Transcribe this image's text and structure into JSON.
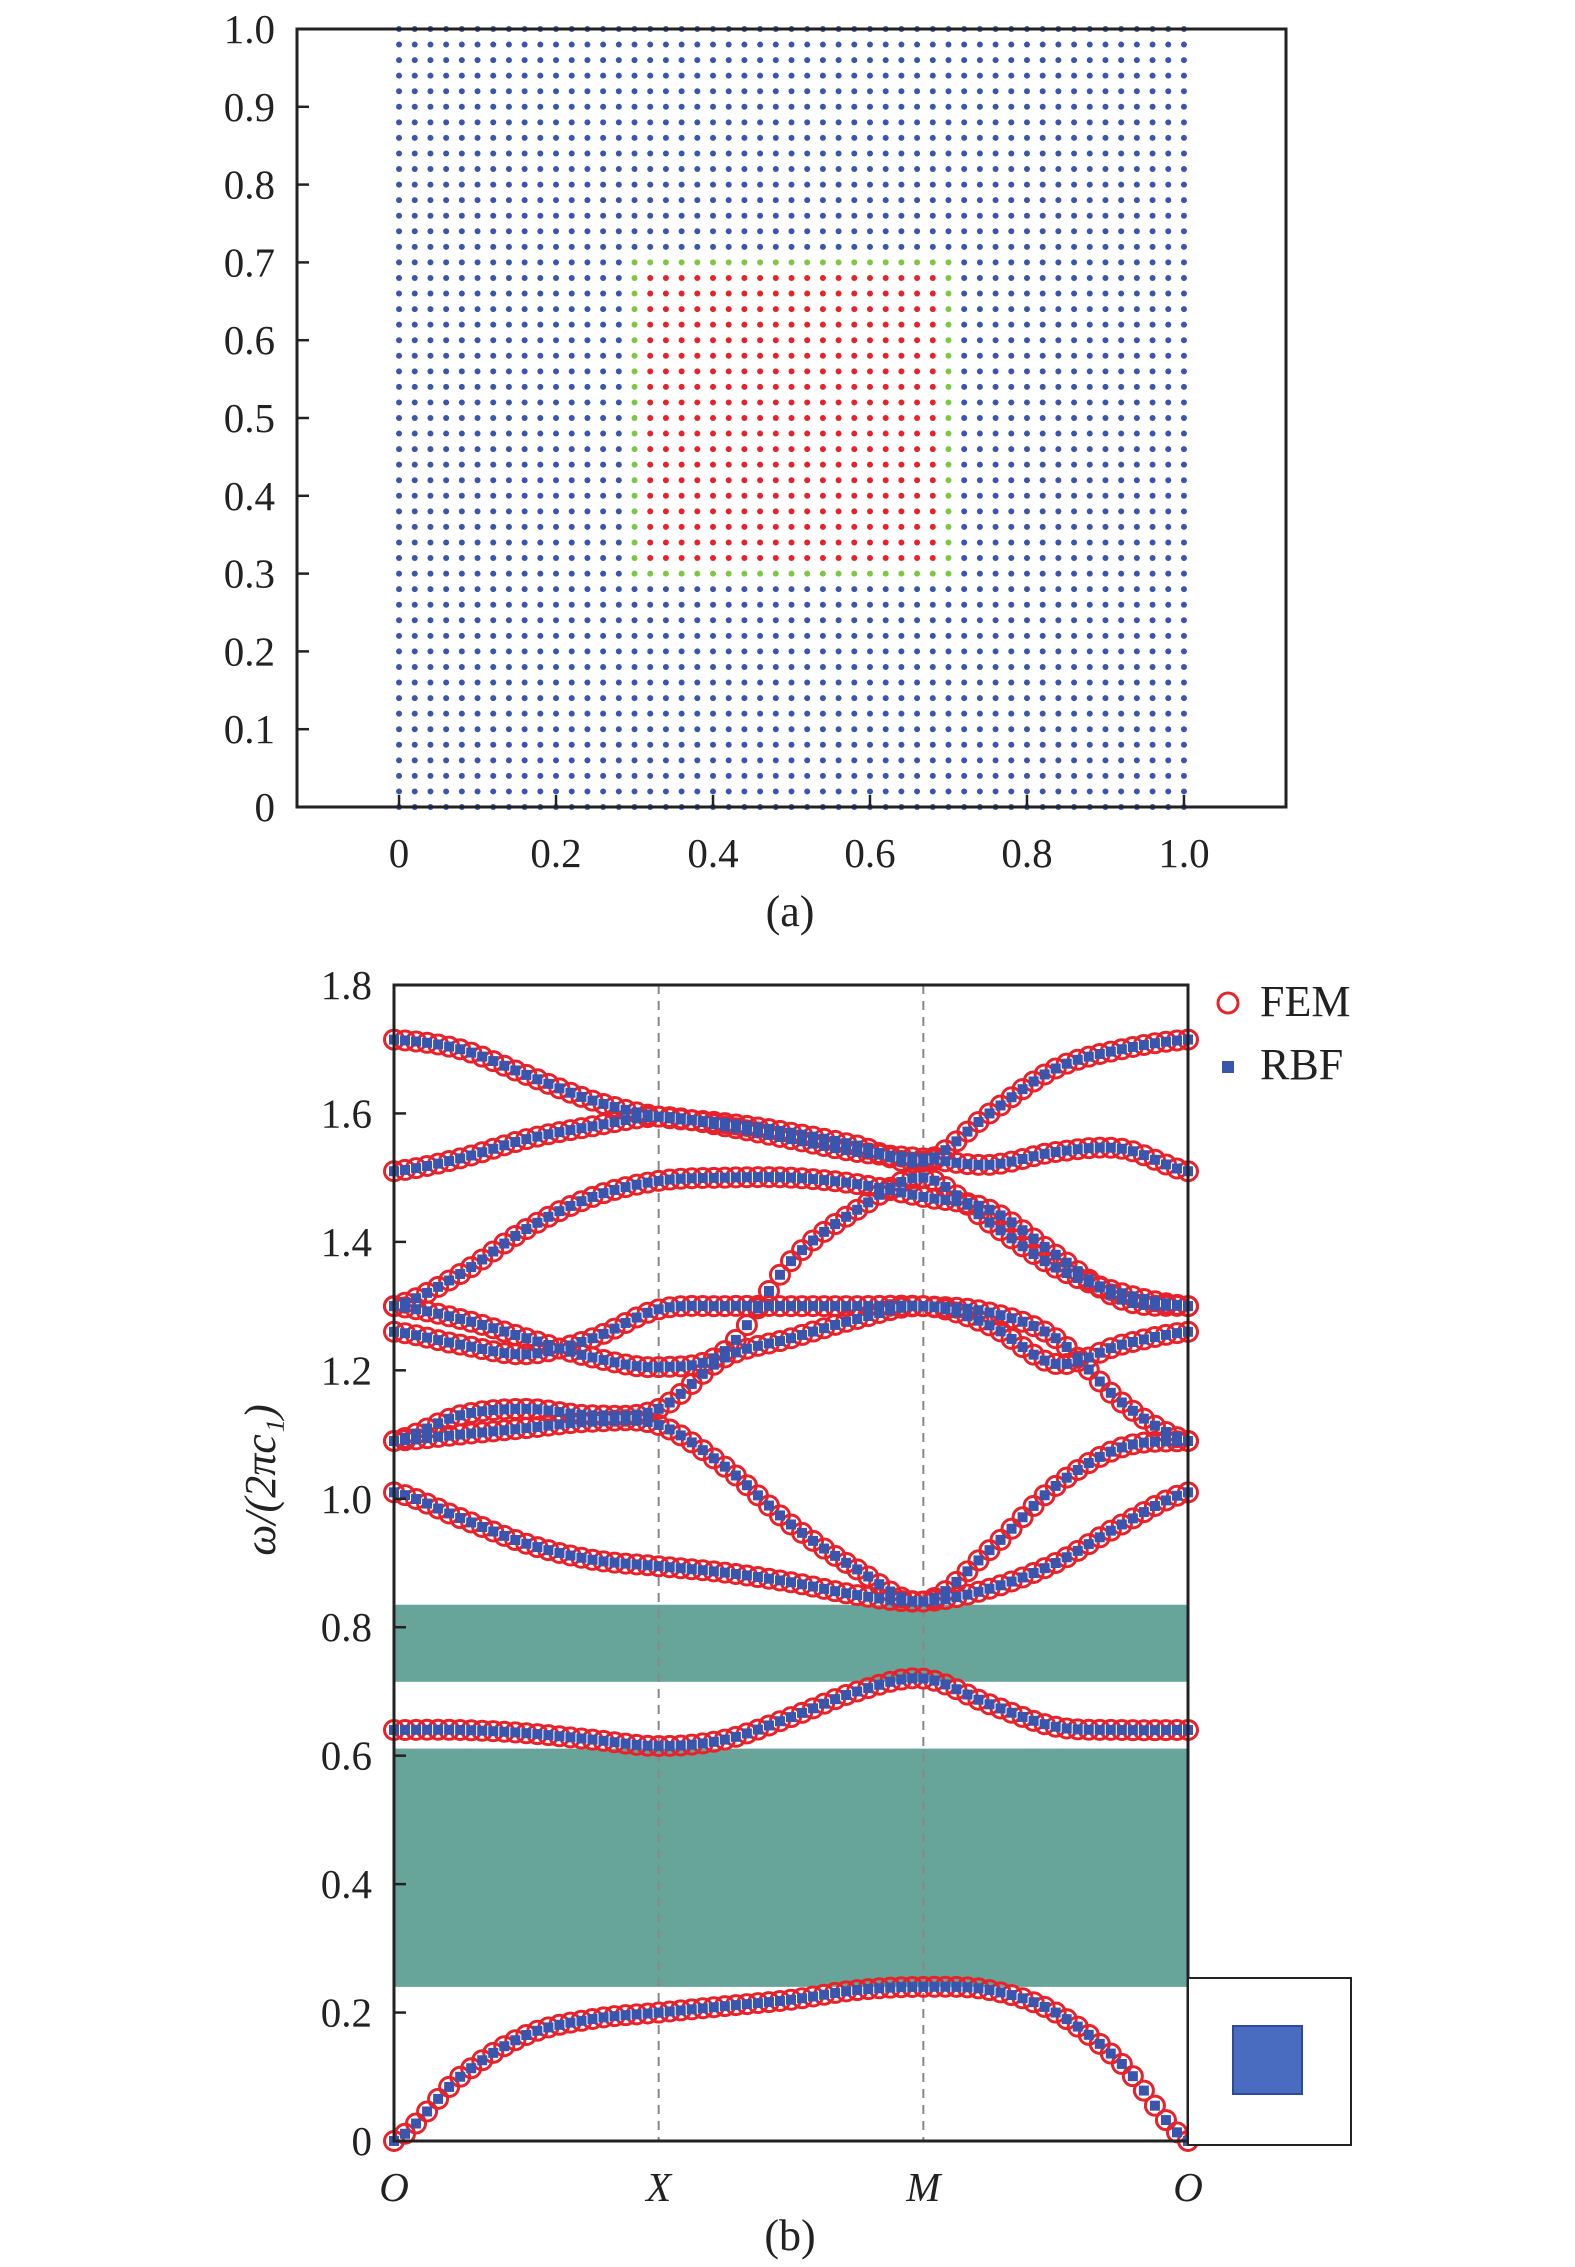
{
  "chart_data": [
    {
      "type": "scatter",
      "panel_label": "(a)",
      "xlim": [
        -0.13,
        1.13
      ],
      "ylim": [
        0,
        1.0
      ],
      "xticks": [
        0,
        0.2,
        0.4,
        0.6,
        0.8,
        1.0
      ],
      "xtick_labels": [
        "0",
        "0.2",
        "0.4",
        "0.6",
        "0.8",
        "1.0"
      ],
      "yticks": [
        0,
        0.1,
        0.2,
        0.3,
        0.4,
        0.5,
        0.6,
        0.7,
        0.8,
        0.9,
        1.0
      ],
      "ytick_labels": [
        "0",
        "0.1",
        "0.2",
        "0.3",
        "0.4",
        "0.5",
        "0.6",
        "0.7",
        "0.8",
        "0.9",
        "1.0"
      ],
      "grid_nodes": {
        "start": 0,
        "stop": 1.0,
        "step": 0.02
      },
      "regions": {
        "matrix_color": "#3a55ad",
        "inclusion": {
          "range": [
            0.3,
            0.7
          ],
          "color": "#e8222a"
        },
        "interface": {
          "range": [
            0.3,
            0.7
          ],
          "color": "#7cc843"
        }
      },
      "grid": false
    },
    {
      "type": "scatter",
      "panel_label": "(b)",
      "ylabel": "ω/(2πc₁)",
      "ylim": [
        0,
        1.8
      ],
      "yticks": [
        0,
        0.2,
        0.4,
        0.6,
        0.8,
        1.0,
        1.2,
        1.4,
        1.6,
        1.8
      ],
      "ytick_labels": [
        "0",
        "0.2",
        "0.4",
        "0.6",
        "0.8",
        "1.0",
        "1.2",
        "1.4",
        "1.6",
        "1.8"
      ],
      "xticks": [
        0,
        1,
        2,
        3
      ],
      "xtick_labels": [
        "O",
        "X",
        "M",
        "O"
      ],
      "legend": {
        "position": "top-right",
        "entries": [
          {
            "name": "FEM",
            "marker": "open-circle",
            "color": "#e8222a"
          },
          {
            "name": "RBF",
            "marker": "square",
            "color": "#3a55ad"
          }
        ]
      },
      "band_gaps": [
        {
          "from": 0.24,
          "to": 0.611,
          "color": "#67a59b"
        },
        {
          "from": 0.715,
          "to": 0.835,
          "color": "#67a59b"
        }
      ],
      "k_path": [
        0,
        0.25,
        0.5,
        0.75,
        1,
        1.25,
        1.5,
        1.75,
        2,
        2.25,
        2.5,
        2.75,
        3
      ],
      "bands": [
        [
          0,
          0.1,
          0.165,
          0.19,
          0.2,
          0.21,
          0.22,
          0.235,
          0.24,
          0.235,
          0.2,
          0.12,
          0
        ],
        [
          0.64,
          0.64,
          0.635,
          0.625,
          0.615,
          0.625,
          0.66,
          0.7,
          0.72,
          0.68,
          0.645,
          0.64,
          0.64
        ],
        [
          1.01,
          0.97,
          0.93,
          0.905,
          0.895,
          0.885,
          0.87,
          0.85,
          0.84,
          0.86,
          0.9,
          0.96,
          1.01
        ],
        [
          1.09,
          1.1,
          1.11,
          1.12,
          1.115,
          1.05,
          0.96,
          0.89,
          0.84,
          0.92,
          1.02,
          1.08,
          1.09
        ],
        [
          1.09,
          1.13,
          1.14,
          1.13,
          1.14,
          1.22,
          1.25,
          1.28,
          1.3,
          1.27,
          1.21,
          1.24,
          1.26
        ],
        [
          1.26,
          1.24,
          1.225,
          1.25,
          1.295,
          1.3,
          1.3,
          1.3,
          1.3,
          1.29,
          1.25,
          1.15,
          1.09
        ],
        [
          1.3,
          1.28,
          1.25,
          1.22,
          1.205,
          1.23,
          1.37,
          1.45,
          1.5,
          1.43,
          1.36,
          1.32,
          1.3
        ],
        [
          1.3,
          1.35,
          1.42,
          1.47,
          1.495,
          1.5,
          1.5,
          1.49,
          1.47,
          1.45,
          1.38,
          1.31,
          1.3
        ],
        [
          1.51,
          1.53,
          1.56,
          1.58,
          1.595,
          1.58,
          1.56,
          1.54,
          1.53,
          1.52,
          1.54,
          1.545,
          1.51
        ],
        [
          1.715,
          1.7,
          1.66,
          1.62,
          1.595,
          1.585,
          1.57,
          1.55,
          1.525,
          1.6,
          1.67,
          1.7,
          1.715
        ]
      ],
      "inset": {
        "cell_color": "#4a6cc0"
      },
      "grid": false
    }
  ]
}
